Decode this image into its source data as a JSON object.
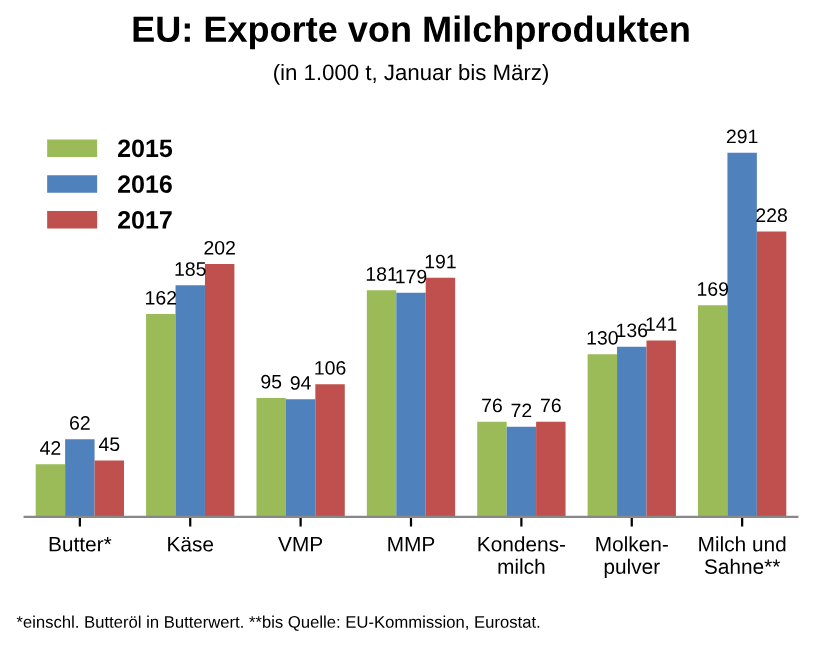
{
  "chart_data": {
    "type": "bar",
    "title": "EU: Exporte von Milchprodukten",
    "subtitle": "(in 1.000 t, Januar bis März)",
    "categories": [
      "Butter*",
      "Käse",
      "VMP",
      "MMP",
      "Kondens-\nmilch",
      "Molken-\npulver",
      "Milch und\nSahne**"
    ],
    "series": [
      {
        "name": "2015",
        "color": "#9bbb59",
        "values": [
          42,
          162,
          95,
          181,
          76,
          130,
          169
        ]
      },
      {
        "name": "2016",
        "color": "#4f81bd",
        "values": [
          62,
          185,
          94,
          179,
          72,
          136,
          291
        ]
      },
      {
        "name": "2017",
        "color": "#c0504d",
        "values": [
          45,
          202,
          106,
          191,
          76,
          141,
          228
        ]
      }
    ],
    "data_labels": true,
    "legend": "top left",
    "grid": false,
    "tick_labels": "x",
    "annotations": [
      "*einschl. Butteröl in Butterwert. **bis Quelle: EU-Kommission, Eurostat."
    ]
  }
}
